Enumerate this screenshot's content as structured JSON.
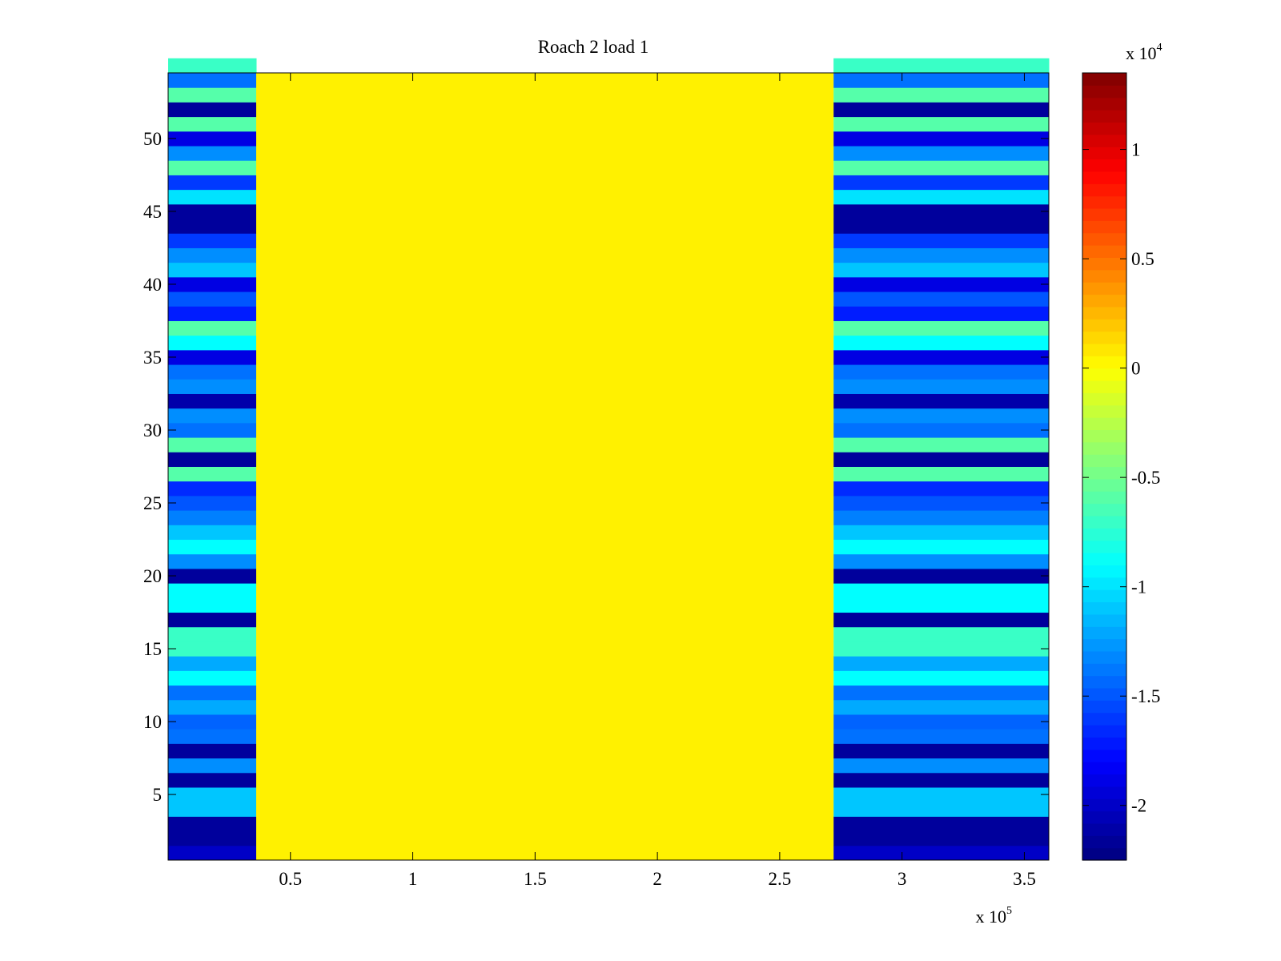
{
  "chart_data": {
    "type": "heatmap",
    "title": "Roach 2 load 1",
    "xlabel": "",
    "ylabel": "",
    "x_multiplier_label": "x 10",
    "x_multiplier_exponent": "5",
    "xlim": [
      0,
      3.6
    ],
    "ylim": [
      0.5,
      54.5
    ],
    "x_ticks": [
      0.5,
      1,
      1.5,
      2,
      2.5,
      3,
      3.5
    ],
    "x_tick_labels": [
      "0.5",
      "1",
      "1.5",
      "2",
      "2.5",
      "3",
      "3.5"
    ],
    "y_ticks": [
      5,
      10,
      15,
      20,
      25,
      30,
      35,
      40,
      45,
      50
    ],
    "y_tick_labels": [
      "5",
      "10",
      "15",
      "20",
      "25",
      "30",
      "35",
      "40",
      "45",
      "50"
    ],
    "colorbar": {
      "colormap": "jet",
      "clim": [
        -22500,
        13500
      ],
      "multiplier_label": "x 10",
      "multiplier_exponent": "4",
      "ticks": [
        -2,
        -1.5,
        -1,
        -0.5,
        0,
        0.5,
        1
      ],
      "tick_labels": [
        "-2",
        "-1.5",
        "-1",
        "-0.5",
        "0",
        "0.5",
        "1"
      ]
    },
    "regions": {
      "left_band_x": [
        0,
        0.36
      ],
      "middle_band_x": [
        0.36,
        2.72
      ],
      "right_band_x": [
        2.72,
        3.6
      ],
      "middle_value": 500
    },
    "row_values": [
      -20000,
      -21500,
      -21500,
      -11000,
      -11000,
      -21500,
      -13000,
      -21500,
      -14000,
      -14500,
      -12000,
      -14000,
      -9000,
      -12000,
      -7000,
      -7000,
      -21500,
      -9000,
      -9000,
      -21500,
      -13000,
      -9000,
      -11000,
      -13500,
      -15000,
      -16500,
      -6000,
      -21500,
      -6000,
      -14000,
      -13000,
      -21000,
      -13000,
      -14000,
      -19000,
      -9000,
      -6000,
      -17000,
      -15000,
      -19000,
      -11000,
      -13000,
      -16000,
      -21500,
      -21500,
      -10000,
      -16000,
      -6000,
      -13000,
      -19000,
      -6000,
      -21500,
      -6000,
      -14000,
      -7000
    ]
  }
}
